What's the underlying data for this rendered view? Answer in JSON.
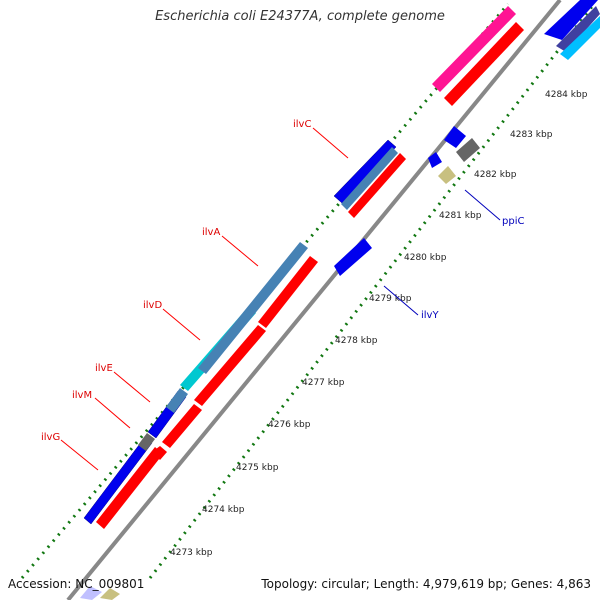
{
  "title": "Escherichia coli E24377A, complete genome",
  "footer": {
    "accession": "Accession: NC_009801",
    "summary": "Topology: circular; Length: 4,979,619 bp; Genes: 4,863"
  },
  "scale": {
    "unit": "kbp",
    "ticks": [
      {
        "kbp": 4273,
        "label": "4273 kbp"
      },
      {
        "kbp": 4274,
        "label": "4274 kbp"
      },
      {
        "kbp": 4275,
        "label": "4275 kbp"
      },
      {
        "kbp": 4276,
        "label": "4276 kbp"
      },
      {
        "kbp": 4277,
        "label": "4277 kbp"
      },
      {
        "kbp": 4278,
        "label": "4278 kbp"
      },
      {
        "kbp": 4279,
        "label": "4279 kbp"
      },
      {
        "kbp": 4280,
        "label": "4280 kbp"
      },
      {
        "kbp": 4281,
        "label": "4281 kbp"
      },
      {
        "kbp": 4282,
        "label": "4282 kbp"
      },
      {
        "kbp": 4283,
        "label": "4283 kbp"
      },
      {
        "kbp": 4284,
        "label": "4284 kbp"
      }
    ]
  },
  "gene_labels": [
    {
      "name": "ilvC",
      "color": "#dd0000"
    },
    {
      "name": "ilvA",
      "color": "#dd0000"
    },
    {
      "name": "ilvD",
      "color": "#dd0000"
    },
    {
      "name": "ilvE",
      "color": "#dd0000"
    },
    {
      "name": "ilvM",
      "color": "#dd0000"
    },
    {
      "name": "ilvG",
      "color": "#dd0000"
    },
    {
      "name": "ppiC",
      "color": "#0000bb"
    },
    {
      "name": "ilvY",
      "color": "#0000bb"
    }
  ],
  "colors": {
    "backbone": "#888888",
    "gc_ticks": "#117711",
    "cds": "#ff0000",
    "gene": "#0000ee",
    "steelblue": "#4682b4",
    "cyan": "#00c8d0",
    "pink": "#ff1493",
    "grey": "#666666",
    "khaki": "#c8c080",
    "skyblue": "#00bfff",
    "navy": "#4040a0",
    "lavender": "#c0c0ff"
  }
}
